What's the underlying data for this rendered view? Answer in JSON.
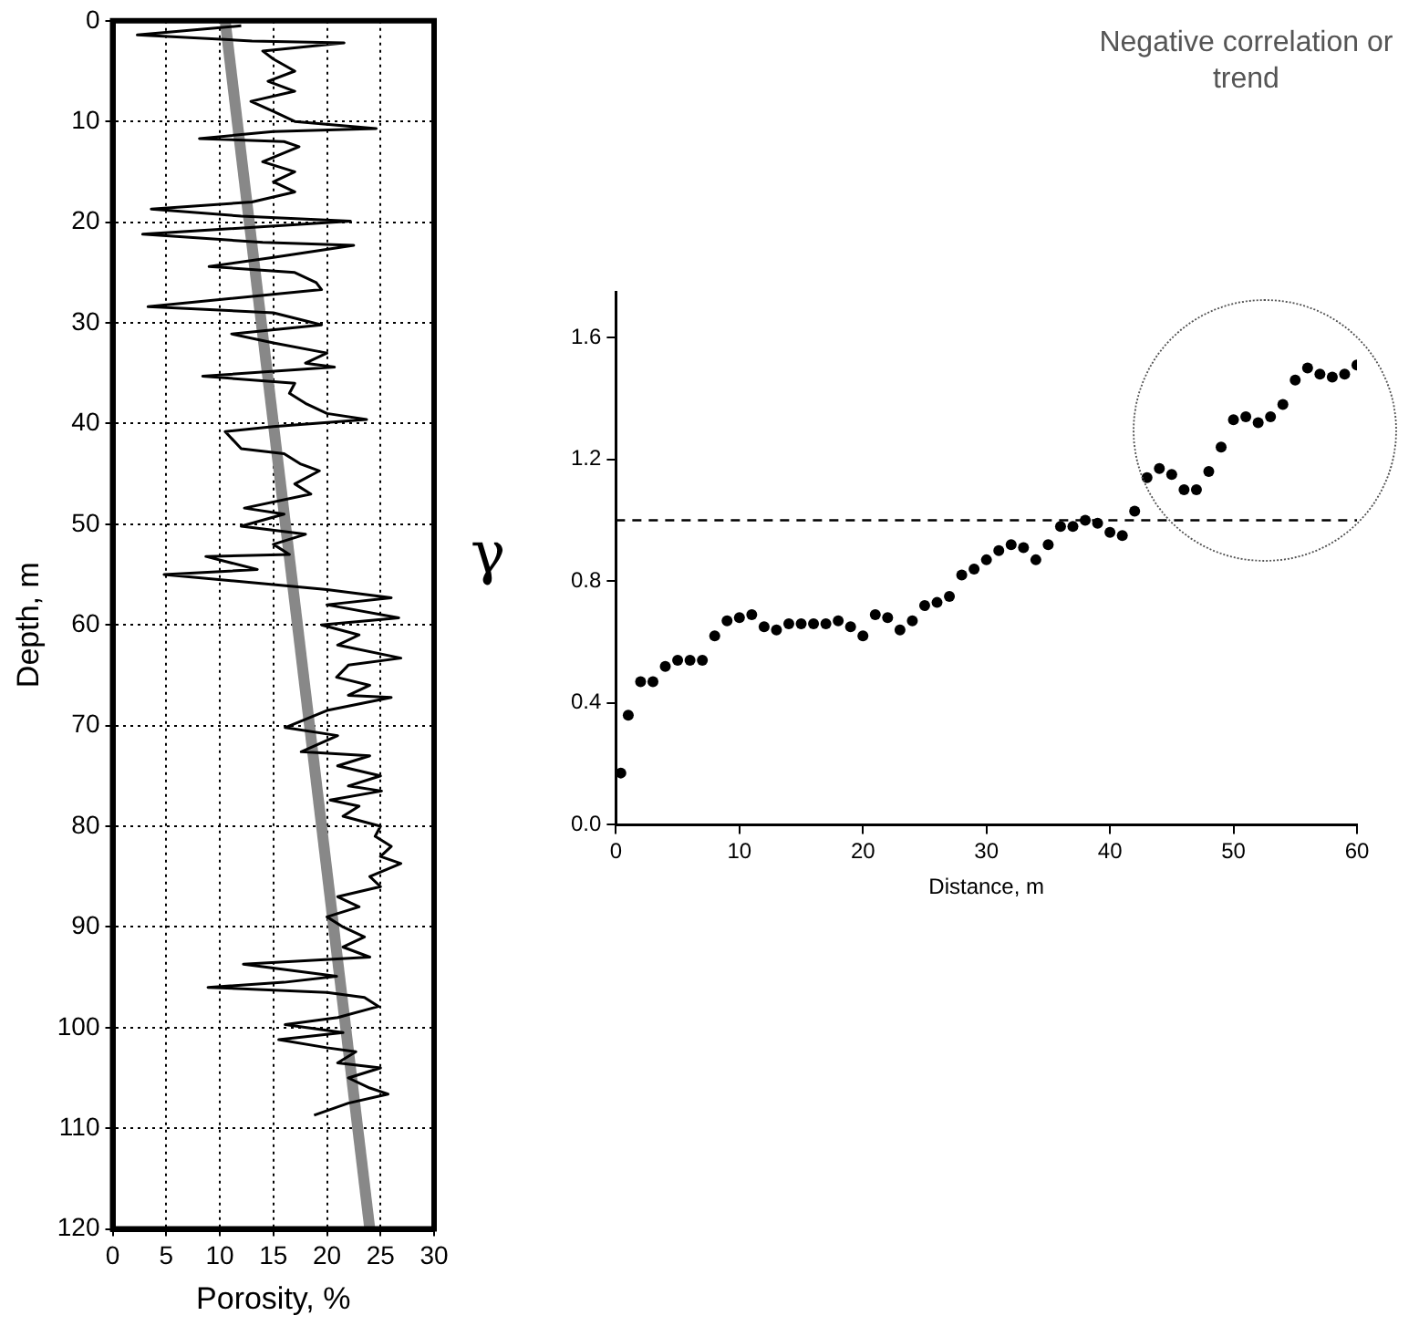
{
  "chart_data": [
    {
      "type": "line",
      "xlabel": "Porosity, %",
      "ylabel": "Depth, m",
      "xlim": [
        0,
        30
      ],
      "xticks": [
        0,
        5,
        10,
        15,
        20,
        25,
        30
      ],
      "ylim": [
        120,
        0
      ],
      "yticks": [
        0,
        10,
        20,
        30,
        40,
        50,
        60,
        70,
        80,
        90,
        100,
        110,
        120
      ],
      "grid": true,
      "marker": "none",
      "series": [
        {
          "color": "#000000",
          "x": [
            12,
            2.3,
            13,
            21.6,
            14,
            15,
            17,
            14.5,
            17,
            12.9,
            15,
            17,
            24.6,
            15,
            8.1,
            16,
            17.4,
            14,
            17,
            15,
            17,
            13,
            3.6,
            12,
            22.2,
            2.8,
            14,
            22.5,
            15,
            9,
            17,
            19,
            19.5,
            3.3,
            15,
            19.5,
            11.1,
            15,
            20,
            18,
            20.7,
            8.4,
            17,
            16.5,
            18,
            20,
            23.7,
            15,
            10.5,
            12,
            16,
            17.5,
            19.3,
            17,
            18.5,
            12.3,
            16,
            12,
            18,
            15,
            16.5,
            8.7,
            13.5,
            4.8,
            15,
            20,
            26,
            20,
            26.7,
            19.5,
            23,
            21,
            26.9,
            22,
            20.9,
            24,
            22,
            26,
            20,
            16.1,
            21,
            17.6,
            24,
            21,
            25,
            22,
            25.1,
            20.3,
            23,
            21.5,
            25,
            24.5,
            26,
            25,
            26.9,
            24,
            25,
            21,
            23,
            20,
            21.5,
            23.5,
            21.5,
            24,
            12.2,
            20.9,
            16,
            8.9,
            20,
            23.5,
            24.8,
            21,
            16.1,
            21.5,
            15.5,
            20,
            22.7,
            21,
            25,
            22,
            24,
            25.7,
            22,
            18.8
          ],
          "values": [
            0.5,
            1.4,
            2,
            2.2,
            3,
            3.8,
            5,
            6,
            7,
            8,
            9,
            10,
            10.7,
            11,
            11.7,
            12,
            12.5,
            14,
            15,
            16,
            17,
            18,
            18.7,
            19.4,
            19.9,
            21.2,
            22,
            22.3,
            23.5,
            24.4,
            25,
            26,
            26.7,
            28.4,
            29,
            30.2,
            31.1,
            32,
            33,
            34,
            34.4,
            35.3,
            36,
            37,
            38,
            39,
            39.6,
            40.3,
            40.8,
            42.5,
            43,
            44,
            44.7,
            46,
            47,
            48.4,
            49,
            50.2,
            51,
            52,
            53,
            53.2,
            54.5,
            55,
            56,
            56.5,
            57.3,
            58,
            59.3,
            60,
            61,
            62,
            63.3,
            64,
            65.2,
            66,
            67,
            67.2,
            68.5,
            70.2,
            71,
            72.6,
            73,
            74,
            75,
            76,
            76.5,
            77.4,
            78,
            79,
            80,
            81,
            82,
            83,
            83.7,
            85,
            86,
            87,
            88,
            89,
            90,
            91,
            92,
            93,
            93.7,
            94.9,
            95.5,
            96,
            96.5,
            97,
            97.9,
            99,
            99.7,
            100.5,
            101.2,
            102,
            102.4,
            103.5,
            104,
            105,
            106,
            106.6,
            107.5,
            108.7
          ]
        },
        {
          "type": "line",
          "color": "#888888",
          "x": [
            10.5,
            24
          ],
          "values": [
            0,
            120
          ]
        }
      ]
    },
    {
      "type": "scatter",
      "xlabel": "Distance, m",
      "ylabel": "γ",
      "xlim": [
        0,
        60
      ],
      "xticks": [
        0,
        10,
        20,
        30,
        40,
        50,
        60
      ],
      "ylim": [
        0,
        1.75
      ],
      "yticks": [
        {
          "value": 0,
          "label": "0.0"
        },
        {
          "value": 0.4,
          "label": "0.4"
        },
        {
          "value": 0.8,
          "label": "0.8"
        },
        {
          "value": 1.2,
          "label": "1.2"
        },
        {
          "value": 1.6,
          "label": "1.6"
        }
      ],
      "grid": false,
      "marker": "circle",
      "annotations": [
        "Negative correlation or trend"
      ],
      "ref_lines": [
        {
          "axis": "y",
          "value": 1.0,
          "line_style": "dashed"
        }
      ],
      "series": [
        {
          "color": "#000000",
          "x": [
            0.4,
            1,
            2,
            3,
            4,
            5,
            6,
            7,
            8,
            9,
            10,
            11,
            12,
            13,
            14,
            15,
            16,
            17,
            18,
            19,
            20,
            21,
            22,
            23,
            24,
            25,
            26,
            27,
            28,
            29,
            30,
            31,
            32,
            33,
            34,
            35,
            36,
            37,
            38,
            39,
            40,
            41,
            42,
            43,
            44,
            45,
            46,
            47,
            48,
            49,
            50,
            51,
            52,
            53,
            54,
            55,
            56,
            57,
            58,
            59,
            60
          ],
          "values": [
            0.17,
            0.36,
            0.47,
            0.47,
            0.52,
            0.54,
            0.54,
            0.54,
            0.62,
            0.67,
            0.68,
            0.69,
            0.65,
            0.64,
            0.66,
            0.66,
            0.66,
            0.66,
            0.67,
            0.65,
            0.62,
            0.69,
            0.68,
            0.64,
            0.67,
            0.72,
            0.73,
            0.75,
            0.82,
            0.84,
            0.87,
            0.9,
            0.92,
            0.91,
            0.87,
            0.92,
            0.98,
            0.98,
            1.0,
            0.99,
            0.96,
            0.95,
            1.03,
            1.14,
            1.17,
            1.15,
            1.1,
            1.1,
            1.16,
            1.24,
            1.33,
            1.34,
            1.32,
            1.34,
            1.38,
            1.46,
            1.5,
            1.48,
            1.47,
            1.48,
            1.51
          ]
        }
      ]
    }
  ]
}
